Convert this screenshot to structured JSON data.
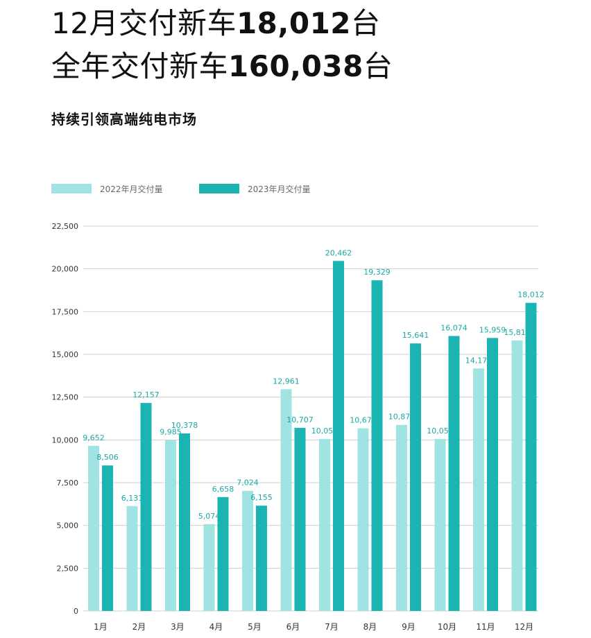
{
  "headline": {
    "line1_prefix": "12月交付新车",
    "line1_value": "18,012",
    "line1_suffix": "台",
    "line2_prefix": "全年交付新车",
    "line2_value": "160,038",
    "line2_suffix": "台"
  },
  "subtitle": "持续引领高端纯电市场",
  "colors": {
    "series_2022": "#9fe3e3",
    "series_2023": "#1ab5b2",
    "label": "#1aa8a5",
    "grid": "#cfcfcf"
  },
  "chart_data": {
    "type": "bar",
    "categories": [
      "1月",
      "2月",
      "3月",
      "4月",
      "5月",
      "6月",
      "7月",
      "8月",
      "9月",
      "10月",
      "11月",
      "12月"
    ],
    "series": [
      {
        "name": "2022年月交付量",
        "values": [
          9652,
          6131,
          9985,
          5074,
          7024,
          12961,
          10052,
          10677,
          10878,
          10059,
          14178,
          15815
        ],
        "labels": [
          "9,652",
          "6,131",
          "9,985",
          "5,074",
          "7,024",
          "12,961",
          "10,052",
          "10,677",
          "10,878",
          "10,059",
          "14,178",
          "15,815"
        ]
      },
      {
        "name": "2023年月交付量",
        "values": [
          8506,
          12157,
          10378,
          6658,
          6155,
          10707,
          20462,
          19329,
          15641,
          16074,
          15959,
          18012
        ],
        "labels": [
          "8,506",
          "12,157",
          "10,378",
          "6,658",
          "6,155",
          "10,707",
          "20,462",
          "19,329",
          "15,641",
          "16,074",
          "15,959",
          "18,012"
        ]
      }
    ],
    "yticks": [
      "0",
      "2,500",
      "5,000",
      "7,500",
      "10,000",
      "12,500",
      "15,000",
      "17,500",
      "20,000",
      "22,500"
    ],
    "ylim": [
      0,
      22500
    ],
    "grid": true,
    "legend_position": "top-left",
    "xlabel": "",
    "ylabel": ""
  }
}
